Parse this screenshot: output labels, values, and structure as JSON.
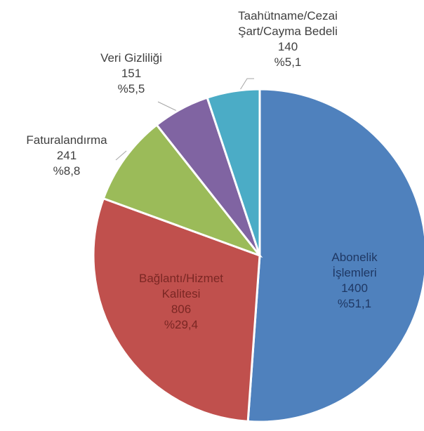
{
  "chart_data": {
    "type": "pie",
    "categories": [
      "Abonelik\nİşlemleri",
      "Bağlantı/Hizmet\nKalitesi",
      "Faturalandırma",
      "Veri Gizliliği",
      "Taahütname/Cezai\nŞart/Cayma Bedeli"
    ],
    "values": [
      1400,
      806,
      241,
      151,
      140
    ],
    "percent_labels": [
      "%51,1",
      "%29,4",
      "%8,8",
      "%5,5",
      "%5,1"
    ],
    "colors": [
      "#4f81bd",
      "#c0504d",
      "#9bbb59",
      "#8064a2",
      "#4bacc6"
    ]
  }
}
